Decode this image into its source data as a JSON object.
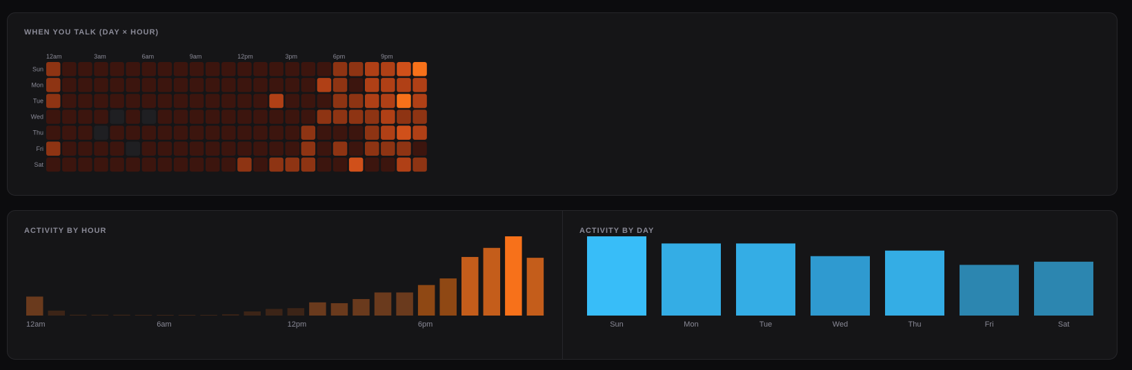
{
  "heatmap_title": "WHEN YOU TALK (DAY × HOUR)",
  "hour_chart_title": "ACTIVITY BY HOUR",
  "day_chart_title": "ACTIVITY BY DAY",
  "colors": {
    "background": "#0c0c0e",
    "panel": "#151517",
    "border": "#27272b",
    "title": "#8a8a97",
    "tick": "#8a8a97",
    "heat_scale": [
      "#1f1f22",
      "#3c150e",
      "#4a180f",
      "#6a2410",
      "#8e3413",
      "#b04016",
      "#d0501a",
      "#f7711a"
    ],
    "hour_scale": [
      "#3c2417",
      "#6a3a1d",
      "#8f4814",
      "#c45d1b",
      "#f7711a"
    ],
    "day_scale": [
      "#2c86b0",
      "#2f9ad0",
      "#34ade5",
      "#38bdf8"
    ]
  },
  "chart_data": [
    {
      "type": "heatmap",
      "title": "WHEN YOU TALK (DAY × HOUR)",
      "rows": [
        "Sun",
        "Mon",
        "Tue",
        "Wed",
        "Thu",
        "Fri",
        "Sat"
      ],
      "columns": [
        0,
        1,
        2,
        3,
        4,
        5,
        6,
        7,
        8,
        9,
        10,
        11,
        12,
        13,
        14,
        15,
        16,
        17,
        18,
        19,
        20,
        21,
        22,
        23
      ],
      "column_tick_labels": [
        "12am",
        "",
        "",
        "3am",
        "",
        "",
        "6am",
        "",
        "",
        "9am",
        "",
        "",
        "12pm",
        "",
        "",
        "3pm",
        "",
        "",
        "6pm",
        "",
        "",
        "9pm",
        "",
        ""
      ],
      "scale": [
        0,
        7
      ],
      "values": [
        [
          4,
          1,
          1,
          1,
          1,
          1,
          1,
          1,
          1,
          1,
          1,
          1,
          1,
          1,
          1,
          1,
          1,
          1,
          4,
          4,
          5,
          5,
          6,
          7
        ],
        [
          4,
          1,
          1,
          1,
          1,
          1,
          1,
          1,
          1,
          1,
          1,
          1,
          1,
          1,
          1,
          1,
          1,
          5,
          4,
          1,
          5,
          5,
          5,
          5
        ],
        [
          4,
          1,
          1,
          1,
          1,
          1,
          1,
          1,
          1,
          1,
          1,
          1,
          1,
          1,
          5,
          1,
          1,
          1,
          4,
          4,
          5,
          5,
          7,
          5
        ],
        [
          1,
          1,
          1,
          1,
          0,
          1,
          0,
          1,
          1,
          1,
          1,
          1,
          1,
          1,
          1,
          1,
          1,
          4,
          4,
          4,
          4,
          5,
          4,
          4
        ],
        [
          1,
          1,
          1,
          0,
          1,
          1,
          1,
          1,
          1,
          1,
          1,
          1,
          1,
          1,
          1,
          1,
          4,
          1,
          1,
          1,
          4,
          5,
          6,
          5
        ],
        [
          4,
          1,
          1,
          1,
          1,
          0,
          1,
          1,
          1,
          1,
          1,
          1,
          1,
          1,
          1,
          1,
          4,
          1,
          4,
          1,
          4,
          4,
          4,
          1
        ],
        [
          1,
          1,
          1,
          1,
          1,
          1,
          1,
          1,
          1,
          1,
          1,
          1,
          4,
          1,
          4,
          4,
          4,
          1,
          1,
          6,
          1,
          1,
          5,
          4
        ]
      ]
    },
    {
      "type": "bar",
      "title": "ACTIVITY BY HOUR",
      "categories": [
        0,
        1,
        2,
        3,
        4,
        5,
        6,
        7,
        8,
        9,
        10,
        11,
        12,
        13,
        14,
        15,
        16,
        17,
        18,
        19,
        20,
        21,
        22,
        23
      ],
      "tick_labels": [
        "12am",
        "",
        "",
        "",
        "",
        "",
        "6am",
        "",
        "",
        "",
        "",
        "",
        "12pm",
        "",
        "",
        "",
        "",
        "",
        "6pm",
        "",
        "",
        "",
        "",
        ""
      ],
      "values": [
        23,
        6,
        1,
        1,
        1,
        0.7,
        0.7,
        0.7,
        0.7,
        1.5,
        5,
        8,
        9,
        16,
        15,
        20,
        28,
        28,
        37,
        45,
        71,
        82,
        96,
        70
      ],
      "ylim": [
        0,
        96
      ]
    },
    {
      "type": "bar",
      "title": "ACTIVITY BY DAY",
      "categories": [
        "Sun",
        "Mon",
        "Tue",
        "Wed",
        "Thu",
        "Fri",
        "Sat"
      ],
      "values": [
        100,
        91,
        91,
        75,
        82,
        64,
        68
      ],
      "ylim": [
        0,
        100
      ]
    }
  ]
}
